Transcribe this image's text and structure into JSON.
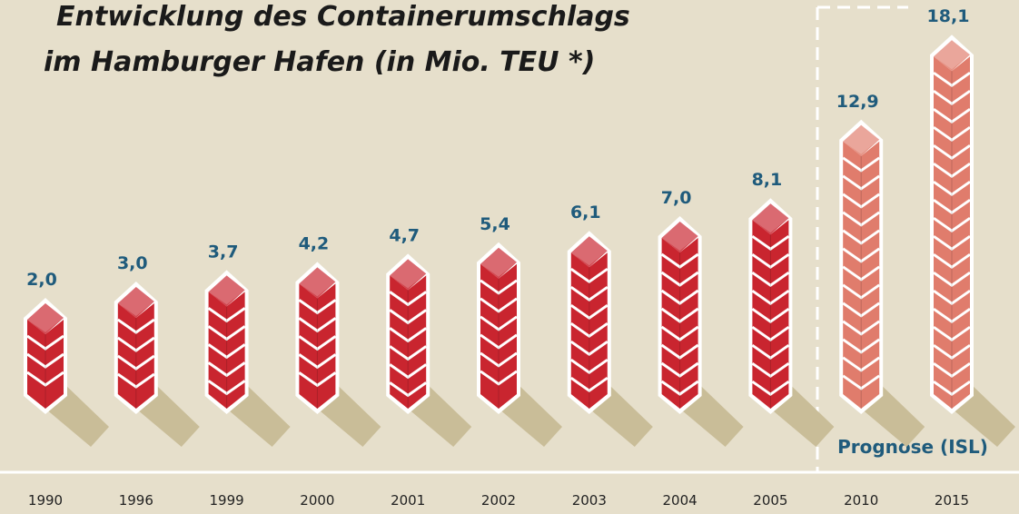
{
  "chart_data": {
    "type": "bar",
    "title": [
      "Entwicklung des Containerumschlags",
      "im Hamburger Hafen (in Mio. TEU *)"
    ],
    "categories": [
      "1990",
      "1996",
      "1999",
      "2000",
      "2001",
      "2002",
      "2003",
      "2004",
      "2005",
      "2010",
      "2015"
    ],
    "values": [
      2.0,
      3.0,
      3.7,
      4.2,
      4.7,
      5.4,
      6.1,
      7.0,
      8.1,
      12.9,
      18.1
    ],
    "value_labels": [
      "2,0",
      "3,0",
      "3,7",
      "4,2",
      "4,7",
      "5,4",
      "6,1",
      "7,0",
      "8,1",
      "12,9",
      "18,1"
    ],
    "colors": [
      "#c9252f",
      "#c9252f",
      "#c9252f",
      "#c9252f",
      "#c9252f",
      "#c9252f",
      "#c9252f",
      "#c9252f",
      "#c9252f",
      "#e07c6c",
      "#e07c6c"
    ],
    "annotation": "Prognose (ISL)"
  }
}
